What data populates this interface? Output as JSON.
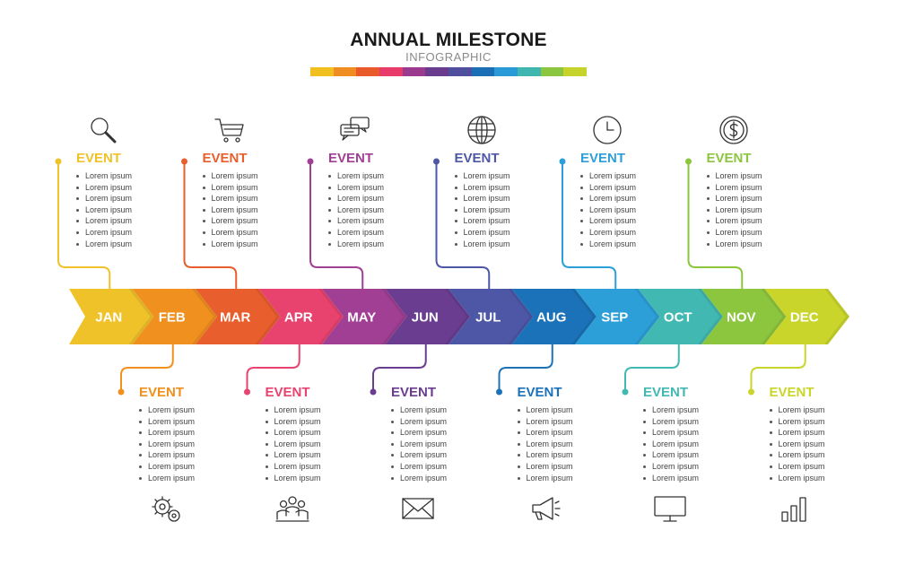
{
  "header": {
    "title": "ANNUAL MILESTONE",
    "subtitle": "INFOGRAPHIC",
    "bar_colors": [
      "#f2c01e",
      "#f08d22",
      "#e85a2b",
      "#e83a6b",
      "#9b3b8e",
      "#6a3c8e",
      "#4f4f9e",
      "#1c6fb5",
      "#2a9bd6",
      "#3fb7b0",
      "#8cc63e",
      "#c6d32a"
    ]
  },
  "timeline": {
    "months": [
      {
        "label": "JAN",
        "color": "#f0c22a"
      },
      {
        "label": "FEB",
        "color": "#f0901f"
      },
      {
        "label": "MAR",
        "color": "#e85e2c"
      },
      {
        "label": "APR",
        "color": "#e8436e"
      },
      {
        "label": "MAY",
        "color": "#a03f93"
      },
      {
        "label": "JUN",
        "color": "#6a3d91"
      },
      {
        "label": "JUL",
        "color": "#4d57a6"
      },
      {
        "label": "AUG",
        "color": "#1c72b8"
      },
      {
        "label": "SEP",
        "color": "#2c9fd8"
      },
      {
        "label": "OCT",
        "color": "#42b8b2"
      },
      {
        "label": "NOV",
        "color": "#8cc63e"
      },
      {
        "label": "DEC",
        "color": "#c9d52b"
      }
    ]
  },
  "events": [
    {
      "title": "EVENT",
      "items": [
        "Lorem ipsum",
        "Lorem ipsum",
        "Lorem ipsum",
        "Lorem ipsum",
        "Lorem ipsum",
        "Lorem ipsum",
        "Lorem ipsum"
      ],
      "icon": "search-icon"
    },
    {
      "title": "EVENT",
      "items": [
        "Lorem ipsum",
        "Lorem ipsum",
        "Lorem ipsum",
        "Lorem ipsum",
        "Lorem ipsum",
        "Lorem ipsum",
        "Lorem ipsum"
      ],
      "icon": "gears-icon"
    },
    {
      "title": "EVENT",
      "items": [
        "Lorem ipsum",
        "Lorem ipsum",
        "Lorem ipsum",
        "Lorem ipsum",
        "Lorem ipsum",
        "Lorem ipsum",
        "Lorem ipsum"
      ],
      "icon": "shopping-cart-icon"
    },
    {
      "title": "EVENT",
      "items": [
        "Lorem ipsum",
        "Lorem ipsum",
        "Lorem ipsum",
        "Lorem ipsum",
        "Lorem ipsum",
        "Lorem ipsum",
        "Lorem ipsum"
      ],
      "icon": "team-icon"
    },
    {
      "title": "EVENT",
      "items": [
        "Lorem ipsum",
        "Lorem ipsum",
        "Lorem ipsum",
        "Lorem ipsum",
        "Lorem ipsum",
        "Lorem ipsum",
        "Lorem ipsum"
      ],
      "icon": "chat-bubbles-icon"
    },
    {
      "title": "EVENT",
      "items": [
        "Lorem ipsum",
        "Lorem ipsum",
        "Lorem ipsum",
        "Lorem ipsum",
        "Lorem ipsum",
        "Lorem ipsum",
        "Lorem ipsum"
      ],
      "icon": "envelope-icon"
    },
    {
      "title": "EVENT",
      "items": [
        "Lorem ipsum",
        "Lorem ipsum",
        "Lorem ipsum",
        "Lorem ipsum",
        "Lorem ipsum",
        "Lorem ipsum",
        "Lorem ipsum"
      ],
      "icon": "globe-icon"
    },
    {
      "title": "EVENT",
      "items": [
        "Lorem ipsum",
        "Lorem ipsum",
        "Lorem ipsum",
        "Lorem ipsum",
        "Lorem ipsum",
        "Lorem ipsum",
        "Lorem ipsum"
      ],
      "icon": "megaphone-icon"
    },
    {
      "title": "EVENT",
      "items": [
        "Lorem ipsum",
        "Lorem ipsum",
        "Lorem ipsum",
        "Lorem ipsum",
        "Lorem ipsum",
        "Lorem ipsum",
        "Lorem ipsum"
      ],
      "icon": "clock-icon"
    },
    {
      "title": "EVENT",
      "items": [
        "Lorem ipsum",
        "Lorem ipsum",
        "Lorem ipsum",
        "Lorem ipsum",
        "Lorem ipsum",
        "Lorem ipsum",
        "Lorem ipsum"
      ],
      "icon": "monitor-icon"
    },
    {
      "title": "EVENT",
      "items": [
        "Lorem ipsum",
        "Lorem ipsum",
        "Lorem ipsum",
        "Lorem ipsum",
        "Lorem ipsum",
        "Lorem ipsum",
        "Lorem ipsum"
      ],
      "icon": "dollar-coin-icon"
    },
    {
      "title": "EVENT",
      "items": [
        "Lorem ipsum",
        "Lorem ipsum",
        "Lorem ipsum",
        "Lorem ipsum",
        "Lorem ipsum",
        "Lorem ipsum",
        "Lorem ipsum"
      ],
      "icon": "bar-chart-icon"
    }
  ]
}
